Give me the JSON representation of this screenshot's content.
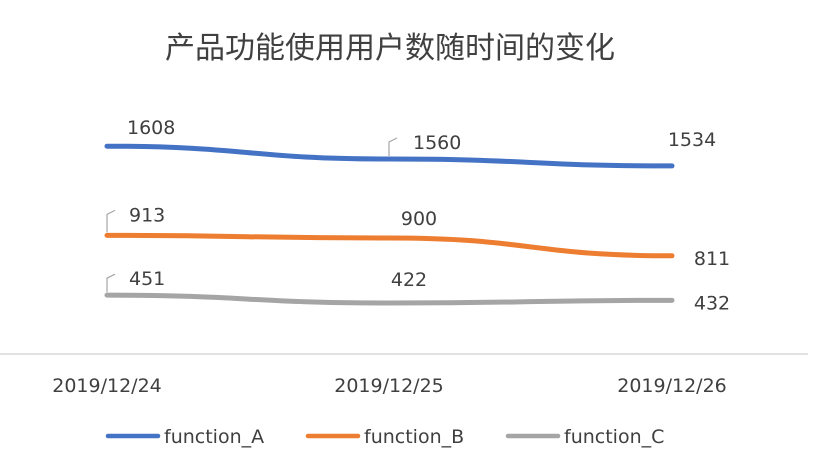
{
  "chart_data": {
    "type": "line",
    "title": "产品功能使用用户数随时间的变化",
    "categories": [
      "2019/12/24",
      "2019/12/25",
      "2019/12/26"
    ],
    "series": [
      {
        "name": "function_A",
        "values": [
          1608,
          1560,
          1534
        ],
        "color": "#4472C4"
      },
      {
        "name": "function_B",
        "values": [
          913,
          900,
          811
        ],
        "color": "#ED7D31"
      },
      {
        "name": "function_C",
        "values": [
          451,
          422,
          432
        ],
        "color": "#A5A5A5"
      }
    ],
    "grid": false,
    "legend_position": "bottom"
  }
}
